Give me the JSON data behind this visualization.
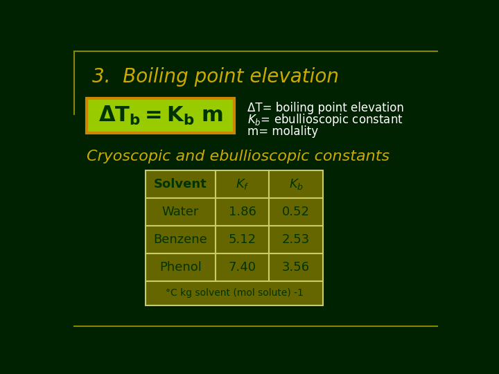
{
  "bg_color": "#002200",
  "border_color": "#888800",
  "title": "3.  Boiling point elevation",
  "title_color": "#ccaa00",
  "title_fontsize": 20,
  "formula_box_bg": "#99cc00",
  "formula_box_border": "#cc8800",
  "formula_text_color": "#003300",
  "annotation1": "ΔT= boiling point elevation",
  "annotation2": "K",
  "annotation2_rest": "= ebullioscopic constant",
  "annotation3": "m= molality",
  "annotation_color": "#ffffff",
  "annotation_fontsize": 12,
  "subtitle": "Cryoscopic and ebullioscopic constants",
  "subtitle_color": "#ccaa00",
  "subtitle_fontsize": 16,
  "table_data": [
    [
      "Water",
      "1.86",
      "0.52"
    ],
    [
      "Benzene",
      "5.12",
      "2.53"
    ],
    [
      "Phenol",
      "7.40",
      "3.56"
    ]
  ],
  "table_footer": "°C kg solvent (mol solute) -1",
  "table_cell_color": "#666600",
  "table_text_color": "#003300",
  "table_border_color": "#cccc66",
  "table_header_text_color": "#003300"
}
